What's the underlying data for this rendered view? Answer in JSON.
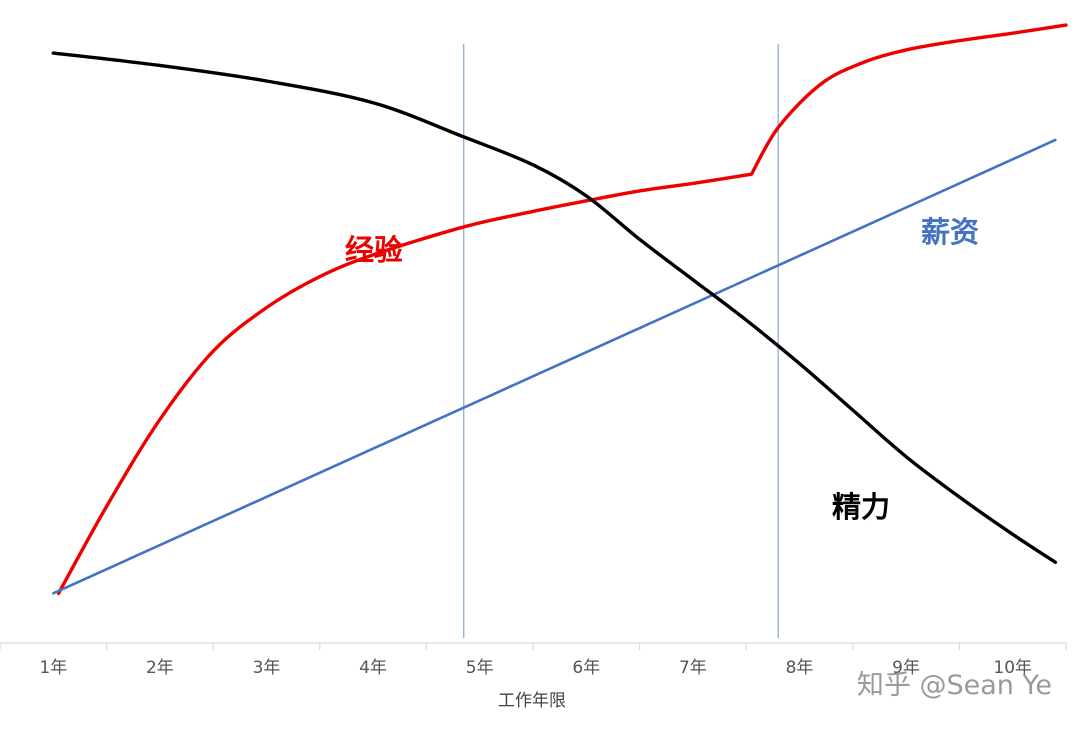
{
  "chart_data": {
    "type": "line",
    "title": "",
    "xlabel": "工作年限",
    "ylabel": "",
    "categories": [
      "1年",
      "2年",
      "3年",
      "4年",
      "5年",
      "6年",
      "7年",
      "8年",
      "9年",
      "10年"
    ],
    "xlim": [
      0.5,
      10.5
    ],
    "ylim": [
      0,
      100
    ],
    "grid": false,
    "reference_lines_x": [
      4.85,
      7.8
    ],
    "series": [
      {
        "name": "经验",
        "color": "#ee0000",
        "points": [
          [
            1.05,
            8
          ],
          [
            1.5,
            22
          ],
          [
            2.0,
            36
          ],
          [
            2.5,
            47
          ],
          [
            3.0,
            54
          ],
          [
            3.5,
            59
          ],
          [
            4.0,
            62.5
          ],
          [
            4.85,
            67
          ],
          [
            5.5,
            69.5
          ],
          [
            6.0,
            71.2
          ],
          [
            6.5,
            72.8
          ],
          [
            7.0,
            74
          ],
          [
            7.55,
            75.5
          ],
          [
            7.8,
            83
          ],
          [
            8.2,
            90
          ],
          [
            8.6,
            93.5
          ],
          [
            9.0,
            95.5
          ],
          [
            9.5,
            97
          ],
          [
            10.0,
            98.2
          ],
          [
            10.5,
            99.5
          ]
        ]
      },
      {
        "name": "薪资",
        "color": "#4472c4",
        "points": [
          [
            1.0,
            8
          ],
          [
            10.4,
            81
          ]
        ]
      },
      {
        "name": "精力",
        "color": "#000000",
        "points": [
          [
            1.0,
            95
          ],
          [
            2.0,
            93
          ],
          [
            3.0,
            90.5
          ],
          [
            4.0,
            87
          ],
          [
            4.85,
            81.5
          ],
          [
            5.5,
            77
          ],
          [
            6.0,
            72
          ],
          [
            6.5,
            65
          ],
          [
            7.0,
            58.5
          ],
          [
            7.5,
            52
          ],
          [
            8.0,
            45
          ],
          [
            8.5,
            37.5
          ],
          [
            9.0,
            30
          ],
          [
            9.5,
            23.5
          ],
          [
            10.0,
            17.5
          ],
          [
            10.4,
            13
          ]
        ]
      }
    ],
    "annotations": [
      {
        "text": "经验",
        "color": "#ee0000"
      },
      {
        "text": "薪资",
        "color": "#4472c4"
      },
      {
        "text": "精力",
        "color": "#000000"
      }
    ]
  },
  "watermark": "知乎 @Sean Ye"
}
